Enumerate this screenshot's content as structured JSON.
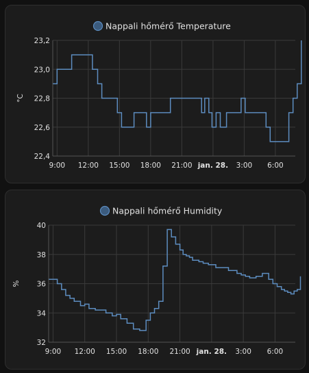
{
  "colors": {
    "background": "#111111",
    "card": "#1c1c1c",
    "grid": "#3a3a3a",
    "series": "#5d8dc0",
    "legend_dot_fill": "#3b5b7e",
    "text": "#e1e1e1"
  },
  "chart_data": [
    {
      "type": "line",
      "step": true,
      "title": "",
      "legend": [
        {
          "label": "Nappali hőmérő Temperature",
          "color": "#5d8dc0"
        }
      ],
      "ylabel": "°C",
      "xlabel": "",
      "ylim": [
        22.4,
        23.2
      ],
      "yticks": [
        "22,4",
        "22,6",
        "22,8",
        "23,0",
        "23,2"
      ],
      "ytick_values": [
        22.4,
        22.6,
        22.8,
        23.0,
        23.2
      ],
      "xlim": [
        "08:35",
        "07:55 (+1 day)"
      ],
      "xticks": [
        {
          "label": "9:00",
          "hour": 9,
          "bold": false
        },
        {
          "label": "12:00",
          "hour": 12,
          "bold": false
        },
        {
          "label": "15:00",
          "hour": 15,
          "bold": false
        },
        {
          "label": "18:00",
          "hour": 18,
          "bold": false
        },
        {
          "label": "21:00",
          "hour": 21,
          "bold": false
        },
        {
          "label": "jan. 28.",
          "hour": 24,
          "bold": true
        },
        {
          "label": "3:00",
          "hour": 27,
          "bold": false
        },
        {
          "label": "6:00",
          "hour": 30,
          "bold": false
        }
      ],
      "grid": true,
      "series": [
        {
          "name": "Nappali hőmérő Temperature",
          "hours": [
            8.6,
            9.0,
            10.4,
            12.4,
            12.9,
            13.3,
            14.8,
            15.2,
            16.4,
            17.6,
            18.0,
            18.4,
            19.9,
            22.9,
            23.2,
            23.6,
            23.9,
            24.3,
            24.7,
            24.9,
            25.3,
            26.7,
            27.1,
            29.1,
            29.5,
            31.3,
            31.7,
            32.1,
            32.5
          ],
          "values": [
            22.9,
            23.0,
            23.1,
            23.0,
            22.9,
            22.8,
            22.7,
            22.6,
            22.7,
            22.6,
            22.7,
            22.7,
            22.8,
            22.7,
            22.8,
            22.7,
            22.6,
            22.7,
            22.6,
            22.6,
            22.7,
            22.8,
            22.7,
            22.6,
            22.5,
            22.7,
            22.8,
            22.9,
            23.2
          ]
        }
      ]
    },
    {
      "type": "line",
      "step": true,
      "title": "",
      "legend": [
        {
          "label": "Nappali hőmérő Humidity",
          "color": "#5d8dc0"
        }
      ],
      "ylabel": "%",
      "xlabel": "",
      "ylim": [
        32,
        40
      ],
      "yticks": [
        "32",
        "34",
        "36",
        "38",
        "40"
      ],
      "ytick_values": [
        32,
        34,
        36,
        38,
        40
      ],
      "xlim": [
        "08:35",
        "07:55 (+1 day)"
      ],
      "xticks": [
        {
          "label": "9:00",
          "hour": 9,
          "bold": false
        },
        {
          "label": "12:00",
          "hour": 12,
          "bold": false
        },
        {
          "label": "15:00",
          "hour": 15,
          "bold": false
        },
        {
          "label": "18:00",
          "hour": 18,
          "bold": false
        },
        {
          "label": "21:00",
          "hour": 21,
          "bold": false
        },
        {
          "label": "jan. 28.",
          "hour": 24,
          "bold": true
        },
        {
          "label": "3:00",
          "hour": 27,
          "bold": false
        },
        {
          "label": "6:00",
          "hour": 30,
          "bold": false
        }
      ],
      "grid": true,
      "series": [
        {
          "name": "Nappali hőmérő Humidity",
          "hours": [
            8.6,
            9.4,
            9.8,
            10.2,
            10.6,
            11.0,
            11.6,
            12.0,
            12.4,
            13.0,
            14.0,
            14.6,
            15.0,
            15.4,
            16.0,
            16.6,
            17.2,
            17.8,
            18.2,
            18.6,
            19.0,
            19.4,
            19.8,
            20.2,
            20.6,
            21.0,
            21.3,
            21.6,
            21.9,
            22.2,
            22.5,
            22.8,
            23.2,
            23.7,
            24.4,
            25.6,
            26.4,
            26.8,
            27.2,
            27.6,
            28.2,
            28.8,
            29.4,
            29.8,
            30.2,
            30.6,
            30.9,
            31.2,
            31.5,
            31.8,
            32.1,
            32.4
          ],
          "values": [
            36.3,
            36.0,
            35.6,
            35.2,
            35.0,
            34.8,
            34.5,
            34.6,
            34.3,
            34.2,
            34.0,
            33.8,
            33.9,
            33.6,
            33.3,
            32.9,
            32.8,
            33.5,
            34.0,
            34.3,
            34.8,
            37.2,
            39.7,
            39.2,
            38.7,
            38.3,
            38.0,
            37.9,
            37.8,
            37.6,
            37.6,
            37.5,
            37.4,
            37.3,
            37.1,
            36.9,
            36.7,
            36.6,
            36.5,
            36.4,
            36.5,
            36.7,
            36.3,
            36.0,
            35.8,
            35.6,
            35.5,
            35.4,
            35.3,
            35.5,
            35.6,
            36.5
          ]
        }
      ]
    }
  ]
}
